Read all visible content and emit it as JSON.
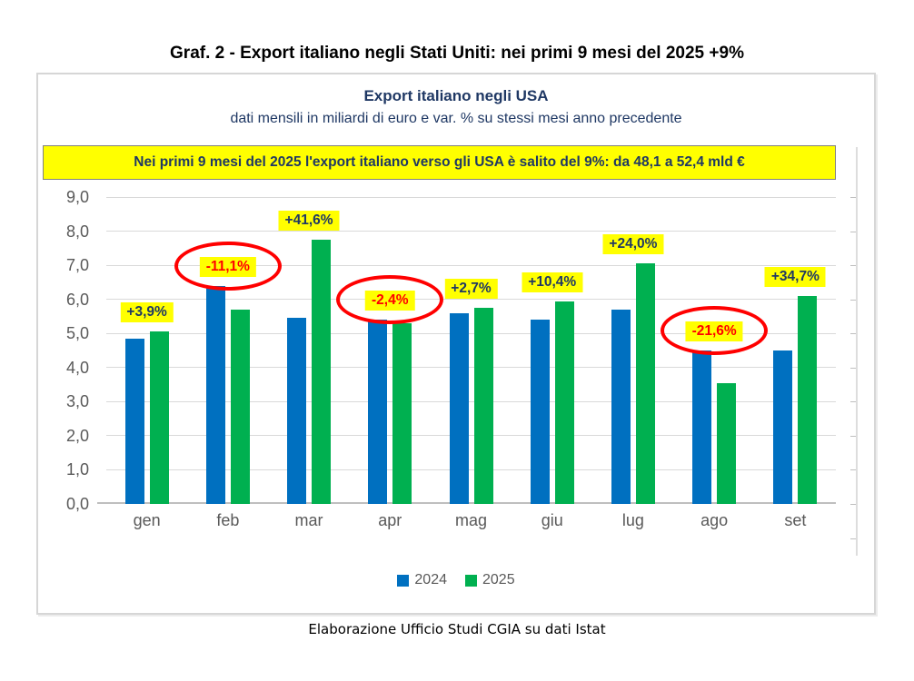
{
  "page": {
    "title": "Graf. 2 - Export italiano negli Stati Uniti: nei primi 9 mesi del 2025 +9%",
    "caption": "Elaborazione Ufficio Studi CGIA su dati Istat"
  },
  "chart": {
    "title": "Export italiano negli USA",
    "subtitle": "dati mensili in miliardi di euro e var. % su stessi mesi anno precedente",
    "banner": "Nei primi 9 mesi del 2025 l'export italiano verso gli USA è salito del 9%: da 48,1 a 52,4 mld €"
  },
  "colors": {
    "bar_2024": "#0070c0",
    "bar_2025": "#00b050",
    "label_positive": "#1f3864",
    "label_negative": "#ff0000",
    "label_background": "#ffff00",
    "circle": "#ff0000",
    "axis_text": "#595959"
  },
  "chart_data": {
    "type": "bar",
    "title": "Export italiano negli USA",
    "subtitle": "dati mensili in miliardi di euro e var. % su stessi mesi anno precedente",
    "categories": [
      "gen",
      "feb",
      "mar",
      "apr",
      "mag",
      "giu",
      "lug",
      "ago",
      "set"
    ],
    "series": [
      {
        "name": "2024",
        "color": "#0070c0",
        "values": [
          4.85,
          6.4,
          5.45,
          5.4,
          5.6,
          5.4,
          5.7,
          4.5,
          4.5
        ]
      },
      {
        "name": "2025",
        "color": "#00b050",
        "values": [
          5.05,
          5.7,
          7.75,
          5.3,
          5.75,
          5.95,
          7.05,
          3.55,
          6.1
        ]
      }
    ],
    "point_labels": [
      {
        "text": "+3,9%",
        "circled": false
      },
      {
        "text": "-11,1%",
        "circled": true
      },
      {
        "text": "+41,6%",
        "circled": false
      },
      {
        "text": "-2,4%",
        "circled": true
      },
      {
        "text": "+2,7%",
        "circled": false
      },
      {
        "text": "+10,4%",
        "circled": false
      },
      {
        "text": "+24,0%",
        "circled": false
      },
      {
        "text": "-21,6%",
        "circled": true
      },
      {
        "text": "+34,7%",
        "circled": false
      }
    ],
    "ylim": [
      0,
      9
    ],
    "ytick_step": 1.0,
    "ytick_labels": [
      "9,0",
      "8,0",
      "7,0",
      "6,0",
      "5,0",
      "4,0",
      "3,0",
      "2,0",
      "1,0",
      "0,0"
    ],
    "grid": true,
    "legend_position": "bottom"
  }
}
